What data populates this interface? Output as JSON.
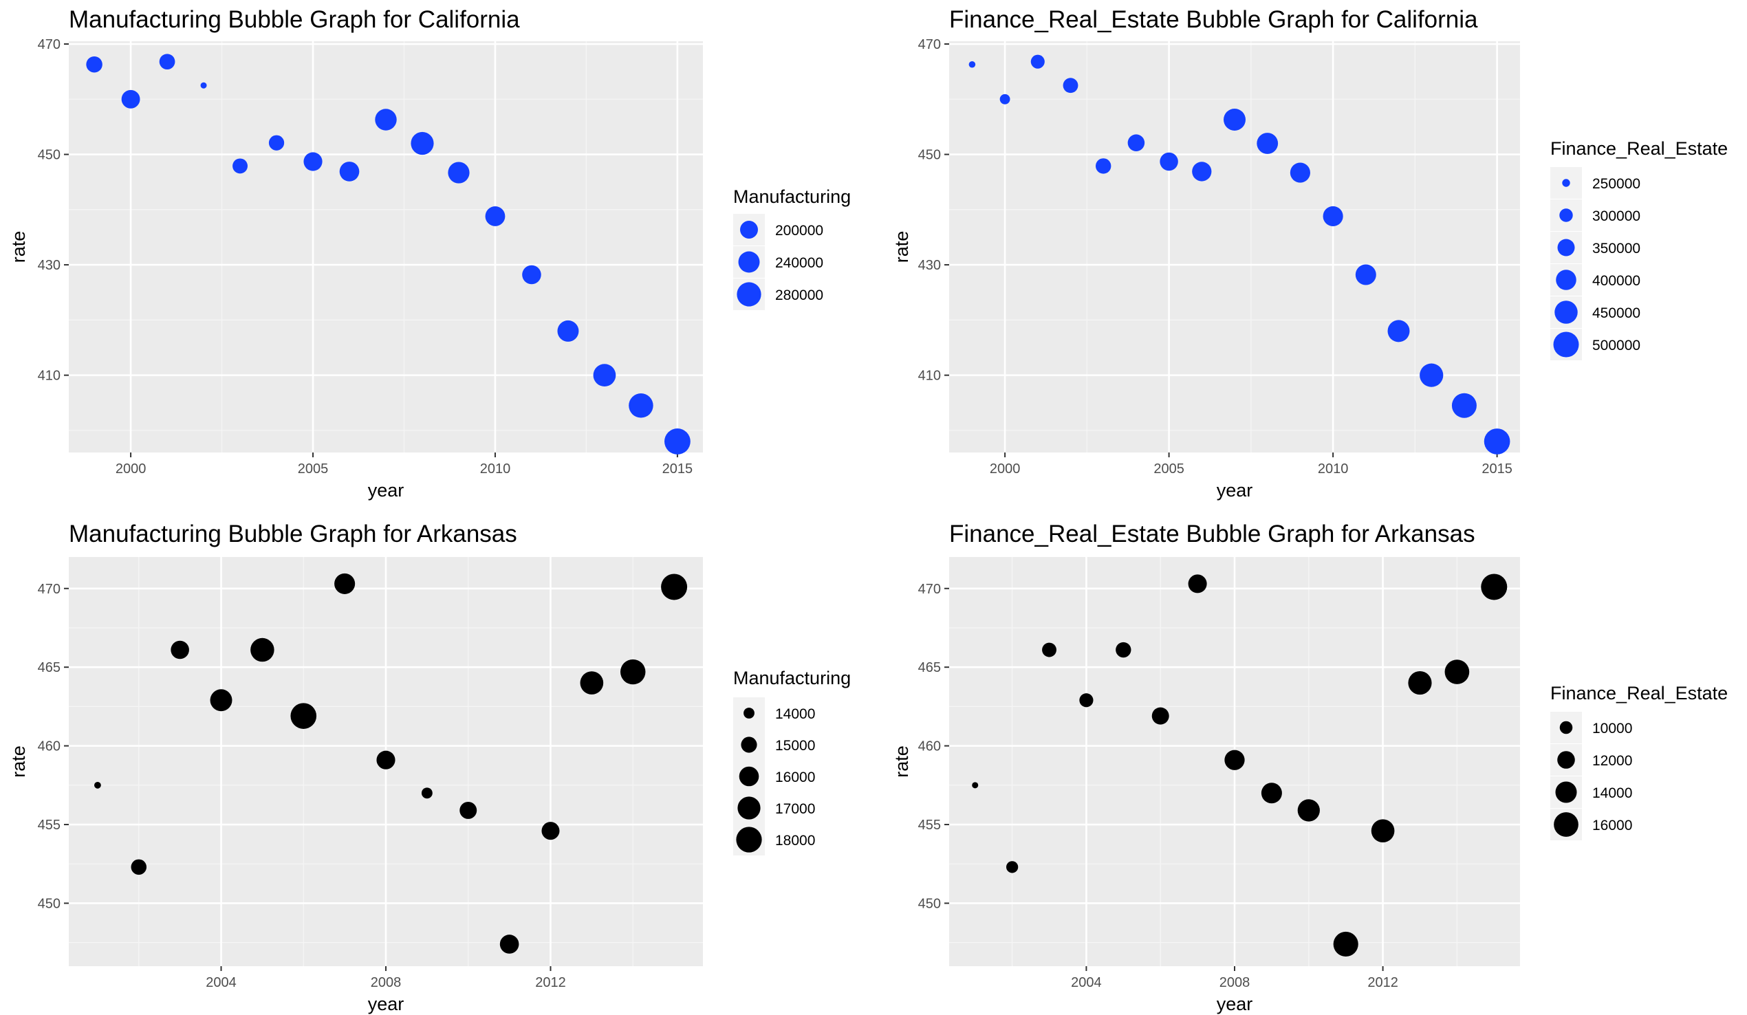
{
  "chart_data": [
    {
      "type": "scatter",
      "title": "Manufacturing Bubble Graph for California",
      "xlabel": "year",
      "ylabel": "rate",
      "xlim": [
        1998.3,
        2015.7
      ],
      "ylim": [
        396,
        470.5
      ],
      "x_ticks": [
        2000,
        2005,
        2010,
        2015
      ],
      "y_ticks": [
        410,
        430,
        450,
        470
      ],
      "color": "#1440ff",
      "size_range": [
        117000,
        308000
      ],
      "legend": {
        "title": "Manufacturing",
        "breaks": [
          200000,
          240000,
          280000
        ],
        "labels": [
          "200000",
          "240000",
          "280000"
        ]
      },
      "points": [
        {
          "x": 1999,
          "y": 466.3,
          "size": 183000
        },
        {
          "x": 2000,
          "y": 460,
          "size": 207000
        },
        {
          "x": 2001,
          "y": 466.8,
          "size": 178000
        },
        {
          "x": 2002,
          "y": 462.5,
          "size": 117000
        },
        {
          "x": 2003,
          "y": 447.9,
          "size": 173000
        },
        {
          "x": 2004,
          "y": 452.1,
          "size": 175000
        },
        {
          "x": 2005,
          "y": 448.7,
          "size": 209000
        },
        {
          "x": 2006,
          "y": 446.9,
          "size": 221000
        },
        {
          "x": 2007,
          "y": 456.3,
          "size": 244000
        },
        {
          "x": 2008,
          "y": 452,
          "size": 260000
        },
        {
          "x": 2009,
          "y": 446.7,
          "size": 242000
        },
        {
          "x": 2010,
          "y": 438.8,
          "size": 222000
        },
        {
          "x": 2011,
          "y": 428.2,
          "size": 212000
        },
        {
          "x": 2012,
          "y": 418,
          "size": 240000
        },
        {
          "x": 2013,
          "y": 410,
          "size": 256000
        },
        {
          "x": 2014,
          "y": 404.5,
          "size": 282000
        },
        {
          "x": 2015,
          "y": 398,
          "size": 306000
        }
      ]
    },
    {
      "type": "scatter",
      "title": "Finance_Real_Estate Bubble Graph for California",
      "xlabel": "year",
      "ylabel": "rate",
      "xlim": [
        1998.3,
        2015.7
      ],
      "ylim": [
        396,
        470.5
      ],
      "x_ticks": [
        2000,
        2005,
        2010,
        2015
      ],
      "y_ticks": [
        410,
        430,
        450,
        470
      ],
      "color": "#1440ff",
      "size_range": [
        240000,
        515000
      ],
      "legend": {
        "title": "Finance_Real_Estate",
        "breaks": [
          250000,
          300000,
          350000,
          400000,
          450000,
          500000
        ],
        "labels": [
          "250000",
          "300000",
          "350000",
          "400000",
          "450000",
          "500000"
        ]
      },
      "points": [
        {
          "x": 1999,
          "y": 466.3,
          "size": 242000
        },
        {
          "x": 2000,
          "y": 460,
          "size": 268000
        },
        {
          "x": 2001,
          "y": 466.8,
          "size": 305000
        },
        {
          "x": 2002,
          "y": 462.5,
          "size": 320000
        },
        {
          "x": 2003,
          "y": 447.9,
          "size": 325000
        },
        {
          "x": 2004,
          "y": 452.1,
          "size": 345000
        },
        {
          "x": 2005,
          "y": 448.7,
          "size": 365000
        },
        {
          "x": 2006,
          "y": 446.9,
          "size": 385000
        },
        {
          "x": 2007,
          "y": 456.3,
          "size": 430000
        },
        {
          "x": 2008,
          "y": 452,
          "size": 415000
        },
        {
          "x": 2009,
          "y": 446.7,
          "size": 395000
        },
        {
          "x": 2010,
          "y": 438.8,
          "size": 395000
        },
        {
          "x": 2011,
          "y": 428.2,
          "size": 405000
        },
        {
          "x": 2012,
          "y": 418,
          "size": 430000
        },
        {
          "x": 2013,
          "y": 410,
          "size": 460000
        },
        {
          "x": 2014,
          "y": 404.5,
          "size": 485000
        },
        {
          "x": 2015,
          "y": 398,
          "size": 510000
        }
      ]
    },
    {
      "type": "scatter",
      "title": "Manufacturing Bubble Graph for Arkansas",
      "xlabel": "year",
      "ylabel": "rate",
      "xlim": [
        2000.3,
        2015.7
      ],
      "ylim": [
        446,
        472
      ],
      "x_ticks": [
        2004,
        2008,
        2012
      ],
      "y_ticks": [
        450,
        455,
        460,
        465,
        470
      ],
      "color": "#000000",
      "size_range": [
        13400,
        18200
      ],
      "legend": {
        "title": "Manufacturing",
        "breaks": [
          14000,
          15000,
          16000,
          17000,
          18000
        ],
        "labels": [
          "14000",
          "15000",
          "16000",
          "17000",
          "18000"
        ]
      },
      "points": [
        {
          "x": 2001,
          "y": 457.5,
          "size": 13450
        },
        {
          "x": 2002,
          "y": 452.3,
          "size": 14900
        },
        {
          "x": 2003,
          "y": 466.1,
          "size": 15600
        },
        {
          "x": 2004,
          "y": 462.9,
          "size": 16700
        },
        {
          "x": 2005,
          "y": 466.1,
          "size": 17300
        },
        {
          "x": 2006,
          "y": 461.9,
          "size": 18100
        },
        {
          "x": 2007,
          "y": 470.3,
          "size": 16300
        },
        {
          "x": 2008,
          "y": 459.1,
          "size": 15700
        },
        {
          "x": 2009,
          "y": 457,
          "size": 14000
        },
        {
          "x": 2010,
          "y": 455.9,
          "size": 15300
        },
        {
          "x": 2011,
          "y": 447.4,
          "size": 15800
        },
        {
          "x": 2012,
          "y": 454.6,
          "size": 15500
        },
        {
          "x": 2013,
          "y": 464,
          "size": 17100
        },
        {
          "x": 2014,
          "y": 464.7,
          "size": 17800
        },
        {
          "x": 2015,
          "y": 470.1,
          "size": 18200
        }
      ]
    },
    {
      "type": "scatter",
      "title": "Finance_Real_Estate Bubble Graph for Arkansas",
      "xlabel": "year",
      "ylabel": "rate",
      "xlim": [
        2000.3,
        2015.7
      ],
      "ylim": [
        446,
        472
      ],
      "x_ticks": [
        2004,
        2008,
        2012
      ],
      "y_ticks": [
        450,
        455,
        460,
        465,
        470
      ],
      "color": "#000000",
      "size_range": [
        8300,
        17100
      ],
      "legend": {
        "title": "Finance_Real_Estate",
        "breaks": [
          10000,
          12000,
          14000,
          16000
        ],
        "labels": [
          "10000",
          "12000",
          "14000",
          "16000"
        ]
      },
      "points": [
        {
          "x": 2001,
          "y": 457.5,
          "size": 8300
        },
        {
          "x": 2002,
          "y": 452.3,
          "size": 9700
        },
        {
          "x": 2003,
          "y": 466.1,
          "size": 10600
        },
        {
          "x": 2004,
          "y": 462.9,
          "size": 10400
        },
        {
          "x": 2005,
          "y": 466.1,
          "size": 11000
        },
        {
          "x": 2006,
          "y": 461.9,
          "size": 11800
        },
        {
          "x": 2007,
          "y": 470.3,
          "size": 12500
        },
        {
          "x": 2008,
          "y": 459.1,
          "size": 13300
        },
        {
          "x": 2009,
          "y": 457,
          "size": 13600
        },
        {
          "x": 2010,
          "y": 455.9,
          "size": 14500
        },
        {
          "x": 2011,
          "y": 447.4,
          "size": 16200
        },
        {
          "x": 2012,
          "y": 454.6,
          "size": 15100
        },
        {
          "x": 2013,
          "y": 464,
          "size": 15300
        },
        {
          "x": 2014,
          "y": 464.7,
          "size": 16000
        },
        {
          "x": 2015,
          "y": 470.1,
          "size": 17100
        }
      ]
    }
  ]
}
